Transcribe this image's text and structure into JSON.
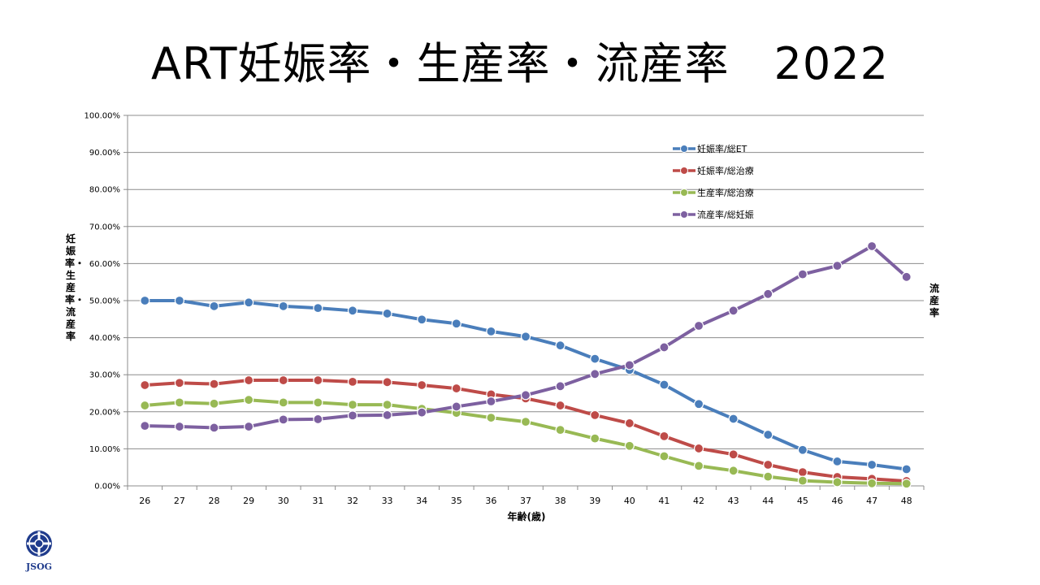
{
  "page": {
    "title": "ART妊娠率・生産率・流産率　2022",
    "logo_text": "JSOG"
  },
  "chart_data": {
    "type": "line",
    "xlabel": "年齢(歳)",
    "ylabel": "妊娠率・生産率・流産率",
    "ylabel_right": "流産率",
    "ylim": [
      0,
      100
    ],
    "yticks": [
      "0.00%",
      "10.00%",
      "20.00%",
      "30.00%",
      "40.00%",
      "50.00%",
      "60.00%",
      "70.00%",
      "80.00%",
      "90.00%",
      "100.00%"
    ],
    "grid": true,
    "legend_position": "top-right",
    "categories": [
      "26",
      "27",
      "28",
      "29",
      "30",
      "31",
      "32",
      "33",
      "34",
      "35",
      "36",
      "37",
      "38",
      "39",
      "40",
      "41",
      "42",
      "43",
      "44",
      "45",
      "46",
      "47",
      "48"
    ],
    "series": [
      {
        "name": "妊娠率/総ET",
        "color": "#4a7ebb",
        "values": [
          50.0,
          50.0,
          48.5,
          49.5,
          48.5,
          48.0,
          47.3,
          46.5,
          44.9,
          43.8,
          41.7,
          40.3,
          37.9,
          34.3,
          31.3,
          27.3,
          22.1,
          18.1,
          13.8,
          9.7,
          6.6,
          5.7,
          4.5
        ]
      },
      {
        "name": "妊娠率/総治療",
        "color": "#be4b48",
        "values": [
          27.2,
          27.8,
          27.5,
          28.5,
          28.5,
          28.5,
          28.1,
          28.0,
          27.2,
          26.3,
          24.7,
          23.6,
          21.7,
          19.1,
          16.9,
          13.4,
          10.1,
          8.5,
          5.7,
          3.7,
          2.4,
          1.9,
          1.3
        ]
      },
      {
        "name": "生産率/総治療",
        "color": "#98b954",
        "values": [
          21.7,
          22.5,
          22.2,
          23.2,
          22.5,
          22.5,
          21.9,
          21.9,
          20.8,
          19.7,
          18.4,
          17.3,
          15.1,
          12.8,
          10.8,
          8.0,
          5.4,
          4.1,
          2.5,
          1.4,
          1.0,
          0.7,
          0.6
        ]
      },
      {
        "name": "流産率/総妊娠",
        "color": "#7d60a0",
        "values": [
          16.2,
          16.0,
          15.7,
          16.0,
          17.9,
          18.0,
          19.0,
          19.1,
          19.8,
          21.4,
          22.8,
          24.5,
          26.9,
          30.2,
          32.6,
          37.4,
          43.2,
          47.3,
          51.8,
          57.1,
          59.4,
          64.7,
          56.4
        ]
      }
    ]
  }
}
